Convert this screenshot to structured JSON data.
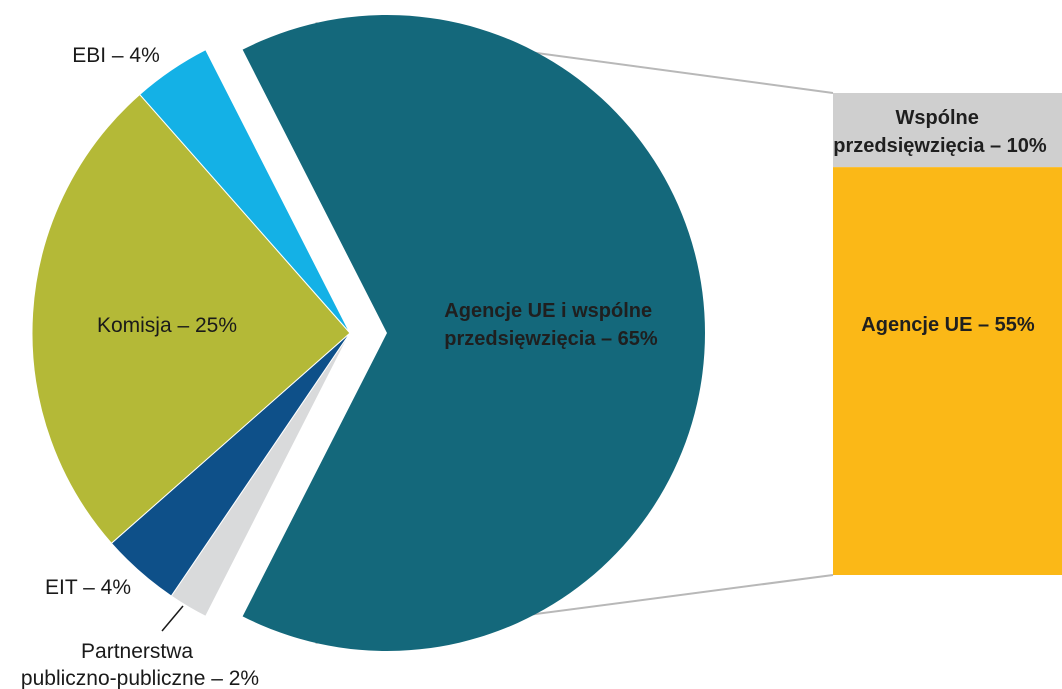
{
  "chart_data": {
    "type": "pie",
    "pie": {
      "slices": [
        {
          "label": "Agencje UE i wspólne przedsięwzięcia – 65%",
          "label_lines": [
            "Agencje UE i wspólne",
            "przedsięwzięcia – 65%"
          ],
          "value": 65,
          "color": "#14687b",
          "exploded": true
        },
        {
          "label": "Partnerstwa publiczno-publiczne – 2%",
          "label_lines": [
            "Partnerstwa",
            "publiczno-publiczne – 2%"
          ],
          "value": 2,
          "color": "#d9dadb"
        },
        {
          "label": "EIT – 4%",
          "label_lines": [
            "EIT – 4%"
          ],
          "value": 4,
          "color": "#0e5089"
        },
        {
          "label": "Komisja – 25%",
          "label_lines": [
            "Komisja – 25%"
          ],
          "value": 25,
          "color": "#b4b937"
        },
        {
          "label": "EBI – 4%",
          "label_lines": [
            "EBI – 4%"
          ],
          "value": 4,
          "color": "#14b1e6"
        }
      ]
    },
    "breakdown_bar": {
      "parent": "Agencje UE i wspólne przedsięwzięcia – 65%",
      "segments": [
        {
          "label": "Wspólne przedsięwzięcia – 10%",
          "label_lines": [
            "Wspólne",
            "przedsięwzięcia – 10%"
          ],
          "value": 10,
          "color": "#cfcfcf"
        },
        {
          "label": "Agencje UE – 55%",
          "label_lines": [
            "Agencje UE – 55%"
          ],
          "value": 55,
          "color": "#fbb817"
        }
      ]
    },
    "connector_color": "#b8b8b8"
  }
}
